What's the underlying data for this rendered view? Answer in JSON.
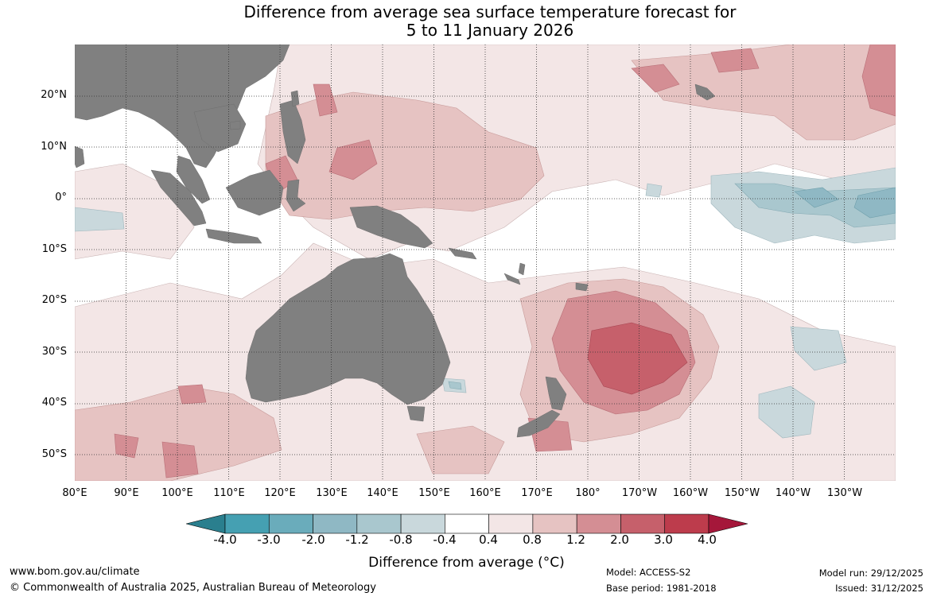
{
  "title": {
    "line1": "Difference from average sea surface temperature forecast for",
    "line2": "5 to 11 January 2026"
  },
  "map": {
    "lat_labels": [
      "20°N",
      "10°N",
      "0°",
      "10°S",
      "20°S",
      "30°S",
      "40°S",
      "50°S"
    ],
    "lon_labels": [
      "80°E",
      "90°E",
      "100°E",
      "110°E",
      "120°E",
      "130°E",
      "140°E",
      "150°E",
      "160°E",
      "170°E",
      "180°",
      "170°W",
      "160°W",
      "150°W",
      "140°W",
      "130°W"
    ],
    "extent": {
      "lon_min": 80,
      "lon_max": 240,
      "lat_min": -55,
      "lat_max": 30
    }
  },
  "colorbar": {
    "ticks": [
      "-4.0",
      "-3.0",
      "-2.0",
      "-1.2",
      "-0.8",
      "-0.4",
      "0.4",
      "0.8",
      "1.2",
      "2.0",
      "3.0",
      "4.0"
    ],
    "colors": [
      "#2a7f8e",
      "#45a0b2",
      "#6aacbb",
      "#8fb8c4",
      "#a9c7ce",
      "#c9d8dc",
      "#ffffff",
      "#f3e6e6",
      "#e6c3c2",
      "#d48e94",
      "#c6606b",
      "#bd3c4c",
      "#a5173a"
    ],
    "label": "Difference from average (°C)"
  },
  "footer": {
    "url": "www.bom.gov.au/climate",
    "copyright": "© Commonwealth of Australia 2025, Australian Bureau of Meteorology",
    "model": "Model: ACCESS-S2",
    "base_period": "Base period: 1981-2018",
    "model_run": "Model run: 29/12/2025",
    "issued": "Issued: 31/12/2025"
  },
  "colors": {
    "land": "#808080",
    "grid": "#333333"
  }
}
